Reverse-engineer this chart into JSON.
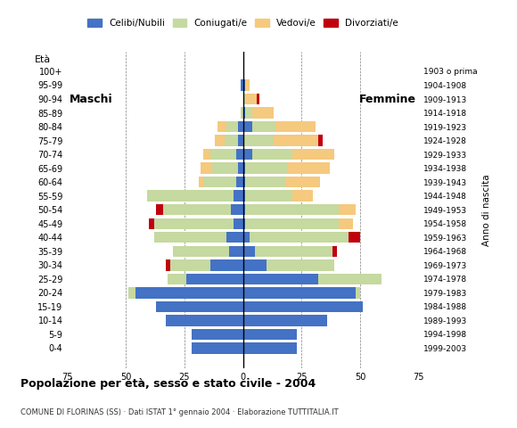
{
  "age_groups": [
    "0-4",
    "5-9",
    "10-14",
    "15-19",
    "20-24",
    "25-29",
    "30-34",
    "35-39",
    "40-44",
    "45-49",
    "50-54",
    "55-59",
    "60-64",
    "65-69",
    "70-74",
    "75-79",
    "80-84",
    "85-89",
    "90-94",
    "95-99",
    "100+"
  ],
  "birth_years": [
    "1999-2003",
    "1994-1998",
    "1989-1993",
    "1984-1988",
    "1979-1983",
    "1974-1978",
    "1969-1973",
    "1964-1968",
    "1959-1963",
    "1954-1958",
    "1949-1953",
    "1944-1948",
    "1939-1943",
    "1934-1938",
    "1929-1933",
    "1924-1928",
    "1919-1923",
    "1914-1918",
    "1909-1913",
    "1904-1908",
    "1903 o prima"
  ],
  "colors": {
    "celibi": "#4472c4",
    "coniugati": "#c5d9a0",
    "vedovi": "#f5c97e",
    "divorziati": "#c0000d"
  },
  "males": {
    "celibi": [
      22,
      22,
      33,
      37,
      46,
      24,
      14,
      6,
      7,
      4,
      5,
      4,
      3,
      2,
      3,
      2,
      2,
      0,
      0,
      1,
      0
    ],
    "coniugati": [
      0,
      0,
      0,
      0,
      3,
      8,
      17,
      24,
      31,
      34,
      29,
      37,
      14,
      11,
      11,
      6,
      5,
      1,
      0,
      0,
      0
    ],
    "vedovi": [
      0,
      0,
      0,
      0,
      0,
      0,
      0,
      0,
      0,
      0,
      0,
      0,
      2,
      5,
      3,
      4,
      4,
      0,
      0,
      0,
      0
    ],
    "divorziati": [
      0,
      0,
      0,
      0,
      0,
      0,
      2,
      0,
      0,
      2,
      3,
      0,
      0,
      0,
      0,
      0,
      0,
      0,
      0,
      0,
      0
    ]
  },
  "females": {
    "celibi": [
      23,
      23,
      36,
      51,
      48,
      32,
      10,
      5,
      3,
      1,
      1,
      1,
      1,
      1,
      4,
      0,
      4,
      1,
      0,
      1,
      0
    ],
    "coniugati": [
      0,
      0,
      0,
      0,
      2,
      27,
      29,
      33,
      42,
      40,
      40,
      20,
      17,
      18,
      17,
      13,
      10,
      3,
      1,
      0,
      0
    ],
    "vedovi": [
      0,
      0,
      0,
      0,
      0,
      0,
      0,
      0,
      0,
      6,
      7,
      9,
      15,
      18,
      18,
      19,
      17,
      9,
      5,
      2,
      0
    ],
    "divorziati": [
      0,
      0,
      0,
      0,
      0,
      0,
      0,
      2,
      5,
      0,
      0,
      0,
      0,
      0,
      0,
      2,
      0,
      0,
      1,
      0,
      0
    ]
  },
  "title": "Popolazione per età, sesso e stato civile - 2004",
  "subtitle": "COMUNE DI FLORINAS (SS) · Dati ISTAT 1° gennaio 2004 · Elaborazione TUTTITALIA.IT",
  "xlabel_left": "Maschi",
  "xlabel_right": "Femmine",
  "ylabel": "Età",
  "ylabel_right": "Anno di nascita",
  "xlim": 75,
  "legend_labels": [
    "Celibi/Nubili",
    "Coniugati/e",
    "Vedovi/e",
    "Divorziati/e"
  ],
  "background_color": "#ffffff",
  "bar_height": 0.8
}
